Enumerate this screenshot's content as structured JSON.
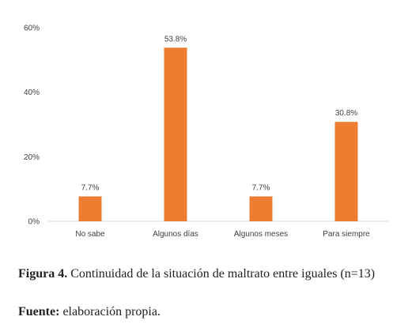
{
  "chart_data": {
    "type": "bar",
    "categories": [
      "No sabe",
      "Algunos días",
      "Algunos meses",
      "Para siempre"
    ],
    "values": [
      7.7,
      53.8,
      7.7,
      30.8
    ],
    "data_labels": [
      "7.7%",
      "53.8%",
      "7.7%",
      "30.8%"
    ],
    "title": "",
    "xlabel": "",
    "ylabel": "",
    "ylim": [
      0,
      60
    ],
    "yticks": [
      "0%",
      "20%",
      "40%",
      "60%"
    ],
    "grid": false,
    "bar_color": "#ED7D31",
    "axis_color": "#d9d9d9"
  },
  "caption": {
    "figure_label": "Figura 4.",
    "figure_text": " Continuidad de la situación de maltrato entre iguales (n=13)",
    "source_label": "Fuente:",
    "source_text": " elaboración propia."
  }
}
